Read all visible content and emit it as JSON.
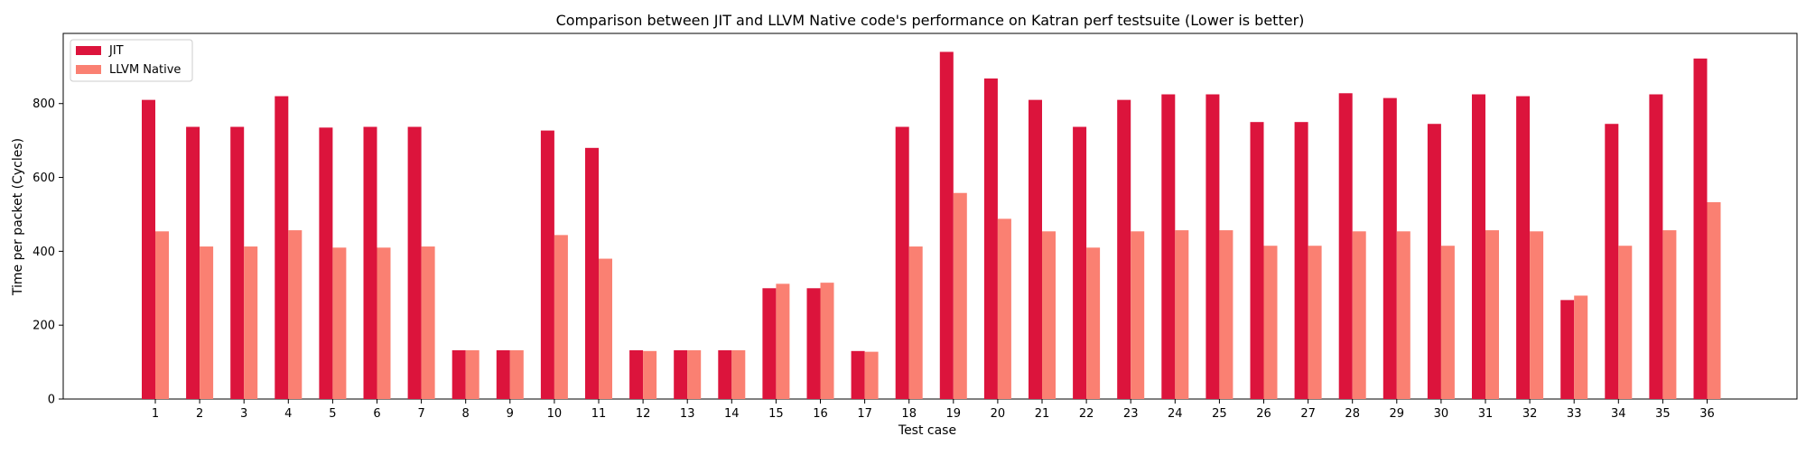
{
  "chart_data": {
    "type": "bar",
    "title": "Comparison between JIT and LLVM Native code's performance on Katran perf testsuite (Lower is better)",
    "xlabel": "Test case",
    "ylabel": "Time per packet (Cycles)",
    "ylim": [
      0,
      990
    ],
    "yticks": [
      0,
      200,
      400,
      600,
      800
    ],
    "grid": false,
    "legend_position": "top-left",
    "categories": [
      "1",
      "2",
      "3",
      "4",
      "5",
      "6",
      "7",
      "8",
      "9",
      "10",
      "11",
      "12",
      "13",
      "14",
      "15",
      "16",
      "17",
      "18",
      "19",
      "20",
      "21",
      "22",
      "23",
      "24",
      "25",
      "26",
      "27",
      "28",
      "29",
      "30",
      "31",
      "32",
      "33",
      "34",
      "35",
      "36"
    ],
    "series": [
      {
        "name": "JIT",
        "color": "#dc143c",
        "values": [
          810,
          737,
          737,
          820,
          735,
          737,
          737,
          132,
          132,
          727,
          680,
          132,
          132,
          132,
          300,
          300,
          130,
          737,
          940,
          868,
          810,
          737,
          810,
          825,
          825,
          750,
          750,
          828,
          815,
          745,
          825,
          820,
          268,
          745,
          825,
          922
        ]
      },
      {
        "name": "LLVM Native",
        "color": "#fa8072",
        "values": [
          454,
          413,
          413,
          457,
          410,
          410,
          413,
          132,
          132,
          444,
          380,
          130,
          132,
          132,
          312,
          315,
          128,
          413,
          558,
          488,
          454,
          410,
          454,
          457,
          457,
          415,
          415,
          454,
          454,
          415,
          457,
          454,
          280,
          415,
          457,
          533
        ]
      }
    ]
  }
}
